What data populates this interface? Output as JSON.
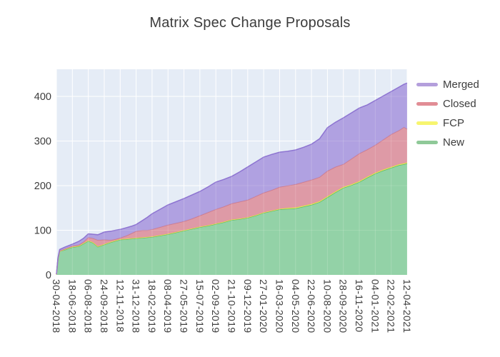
{
  "title": "Matrix Spec Change Proposals",
  "colors": {
    "plot_background": "#e5ecf6",
    "grid": "#ffffff",
    "text": "#3d3d3d",
    "title_text": "#3c3c3c"
  },
  "chart_data": {
    "type": "area",
    "stacked": true,
    "title": "Matrix Spec Change Proposals",
    "xlabel": "",
    "ylabel": "",
    "ylim": [
      0,
      461
    ],
    "y_ticks": [
      0,
      100,
      200,
      300,
      400
    ],
    "grid": true,
    "legend_position": "right",
    "x_unit": "date, ticks every 49 days",
    "x_tick_labels": [
      "30-04-2018",
      "18-06-2018",
      "06-08-2018",
      "24-09-2018",
      "12-11-2018",
      "31-12-2018",
      "18-02-2019",
      "08-04-2019",
      "27-05-2019",
      "15-07-2019",
      "02-09-2019",
      "21-10-2019",
      "09-12-2019",
      "27-01-2020",
      "16-03-2020",
      "04-05-2020",
      "22-06-2020",
      "10-08-2020",
      "28-09-2020",
      "16-11-2020",
      "04-01-2021",
      "22-02-2021",
      "12-04-2021"
    ],
    "x": [
      0,
      0.1,
      0.2,
      0.5,
      1,
      1.4,
      1.7,
      2,
      2.3,
      2.6,
      3,
      3.4,
      3.7,
      4,
      4.4,
      4.7,
      5,
      5.4,
      5.7,
      6,
      6.5,
      7,
      7.5,
      8,
      8.5,
      9,
      9.5,
      10,
      10.5,
      11,
      11.5,
      12,
      12.5,
      13,
      13.5,
      14,
      14.5,
      15,
      15.5,
      16,
      16.5,
      17,
      17.5,
      18,
      18.5,
      19,
      19.5,
      20,
      20.5,
      21,
      21.5,
      21.8,
      22
    ],
    "series": [
      {
        "name": "New",
        "color": "#8ccfa0",
        "line_color": "#57b96d",
        "legend_color": "#8fc998",
        "values": [
          1,
          36,
          53,
          56,
          62,
          64,
          70,
          76,
          72,
          63,
          68,
          73,
          76,
          79,
          80,
          81,
          82,
          83,
          84,
          85,
          88,
          91,
          95,
          99,
          103,
          107,
          110,
          114,
          118,
          123,
          125,
          128,
          133,
          139,
          143,
          147,
          148,
          149,
          153,
          157,
          163,
          174,
          185,
          195,
          201,
          208,
          218,
          227,
          234,
          240,
          246,
          248,
          250
        ]
      },
      {
        "name": "FCP",
        "color": "#f3ef6d",
        "line_color": "#e8e34c",
        "legend_color": "#f7f56f",
        "values": [
          0,
          0,
          0,
          1,
          1,
          1,
          1,
          1,
          1,
          1,
          1,
          1,
          1,
          1,
          1,
          1,
          1,
          1,
          1,
          1,
          1,
          1,
          1,
          1,
          1,
          1,
          1,
          1,
          1,
          1,
          1,
          1,
          1,
          1,
          1,
          1,
          2,
          2,
          2,
          2,
          2,
          2,
          2,
          2,
          2,
          2,
          2,
          2,
          2,
          2,
          2,
          2,
          2
        ]
      },
      {
        "name": "Closed",
        "color": "#dd939e",
        "line_color": "#d07a88",
        "legend_color": "#e18d95",
        "values": [
          0,
          1,
          1,
          1,
          2,
          2,
          3,
          7,
          9,
          14,
          10,
          4,
          3,
          3,
          7,
          11,
          15,
          16,
          15,
          16,
          18,
          20,
          20,
          20,
          22,
          25,
          29,
          32,
          34,
          36,
          38,
          39,
          42,
          44,
          46,
          49,
          50,
          52,
          53,
          54,
          54,
          57,
          55,
          51,
          57,
          62,
          61,
          62,
          67,
          73,
          76,
          81,
          75
        ]
      },
      {
        "name": "Merged",
        "color": "#ab9ade",
        "line_color": "#8d74d1",
        "legend_color": "#b49fdc",
        "values": [
          1,
          2,
          3,
          4,
          4,
          8,
          8,
          8,
          9,
          12,
          17,
          20,
          20,
          19,
          18,
          16,
          15,
          22,
          29,
          35,
          40,
          45,
          48,
          51,
          53,
          54,
          57,
          61,
          61,
          61,
          67,
          74,
          77,
          80,
          80,
          78,
          77,
          77,
          78,
          80,
          86,
          97,
          100,
          104,
          103,
          102,
          100,
          100,
          98,
          96,
          97,
          96,
          103
        ]
      }
    ]
  }
}
